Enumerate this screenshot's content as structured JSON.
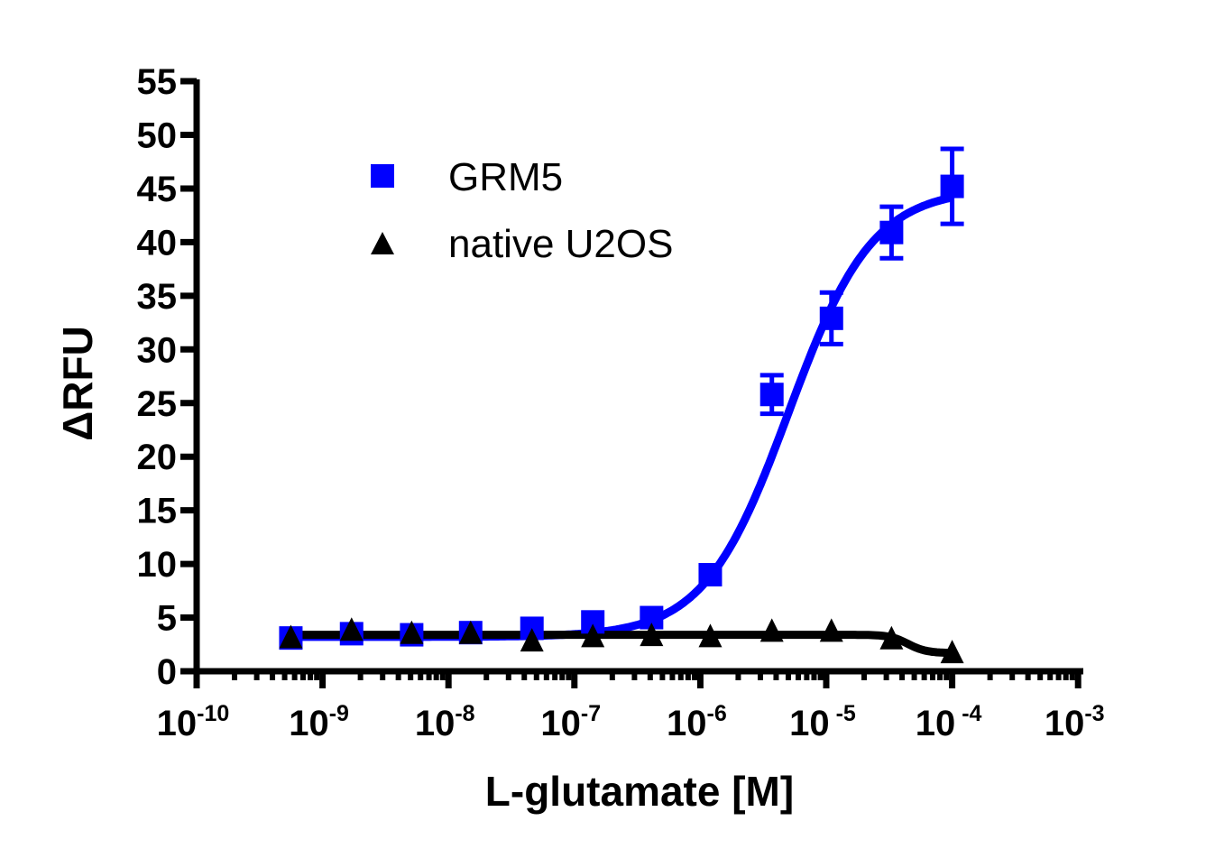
{
  "chart_data": {
    "type": "scatter",
    "title": "",
    "xlabel": "L-glutamate [M]",
    "ylabel": "ΔRFU",
    "xscale": "log",
    "xlim": [
      1e-10,
      0.001
    ],
    "ylim": [
      0,
      55
    ],
    "x_ticks": [
      {
        "base": "10",
        "exp": "-10",
        "value": 1e-10
      },
      {
        "base": "10",
        "exp": "-9",
        "value": 1e-09
      },
      {
        "base": "10",
        "exp": "-8",
        "value": 1e-08
      },
      {
        "base": "10",
        "exp": "-7",
        "value": 1e-07
      },
      {
        "base": "10",
        "exp": "-6",
        "value": 1e-06
      },
      {
        "base": "10",
        "exp": " -5",
        "value": 1e-05
      },
      {
        "base": "10",
        "exp": " -4",
        "value": 0.0001
      },
      {
        "base": "10",
        "exp": "-3",
        "value": 0.001
      }
    ],
    "y_ticks": [
      "0",
      "5",
      "10",
      "15",
      "20",
      "25",
      "30",
      "35",
      "40",
      "45",
      "50",
      "55"
    ],
    "grid": false,
    "legend_position": "upper-left-inside",
    "x": [
      5.6e-10,
      1.7e-09,
      5.1e-09,
      1.5e-08,
      4.6e-08,
      1.4e-07,
      4.1e-07,
      1.2e-06,
      3.7e-06,
      1.1e-05,
      3.3e-05,
      0.0001
    ],
    "series": [
      {
        "name": "GRM5",
        "marker": "square",
        "color": "#0000ff",
        "values": [
          3.1,
          3.5,
          3.4,
          3.6,
          4.0,
          4.6,
          5.0,
          9.0,
          25.8,
          32.9,
          40.9,
          45.2
        ],
        "error": [
          0,
          0,
          0,
          0,
          0,
          0,
          0,
          0,
          1.8,
          2.4,
          2.4,
          3.5
        ],
        "fit": {
          "model": "sigmoidal dose-response",
          "bottom": 3.2,
          "top": 45.0,
          "log_ec50": -5.3,
          "hill": 1.3
        }
      },
      {
        "name": "native U2OS",
        "marker": "triangle",
        "color": "#000000",
        "values": [
          2.9,
          3.6,
          3.3,
          3.3,
          2.6,
          3.0,
          3.1,
          3.0,
          3.5,
          3.5,
          2.8,
          1.5
        ],
        "error": [
          0,
          0,
          0,
          0,
          0,
          0,
          0,
          0,
          0,
          0,
          0,
          0
        ],
        "fit": {
          "model": "sigmoidal dose-response",
          "bottom": 1.7,
          "top": 3.4,
          "log_ec50": -4.35,
          "hill": -6
        }
      }
    ]
  },
  "legend": {
    "items": [
      {
        "label": "GRM5",
        "marker": "square",
        "color": "#0000ff"
      },
      {
        "label": "native U2OS",
        "marker": "triangle",
        "color": "#000000"
      }
    ]
  }
}
